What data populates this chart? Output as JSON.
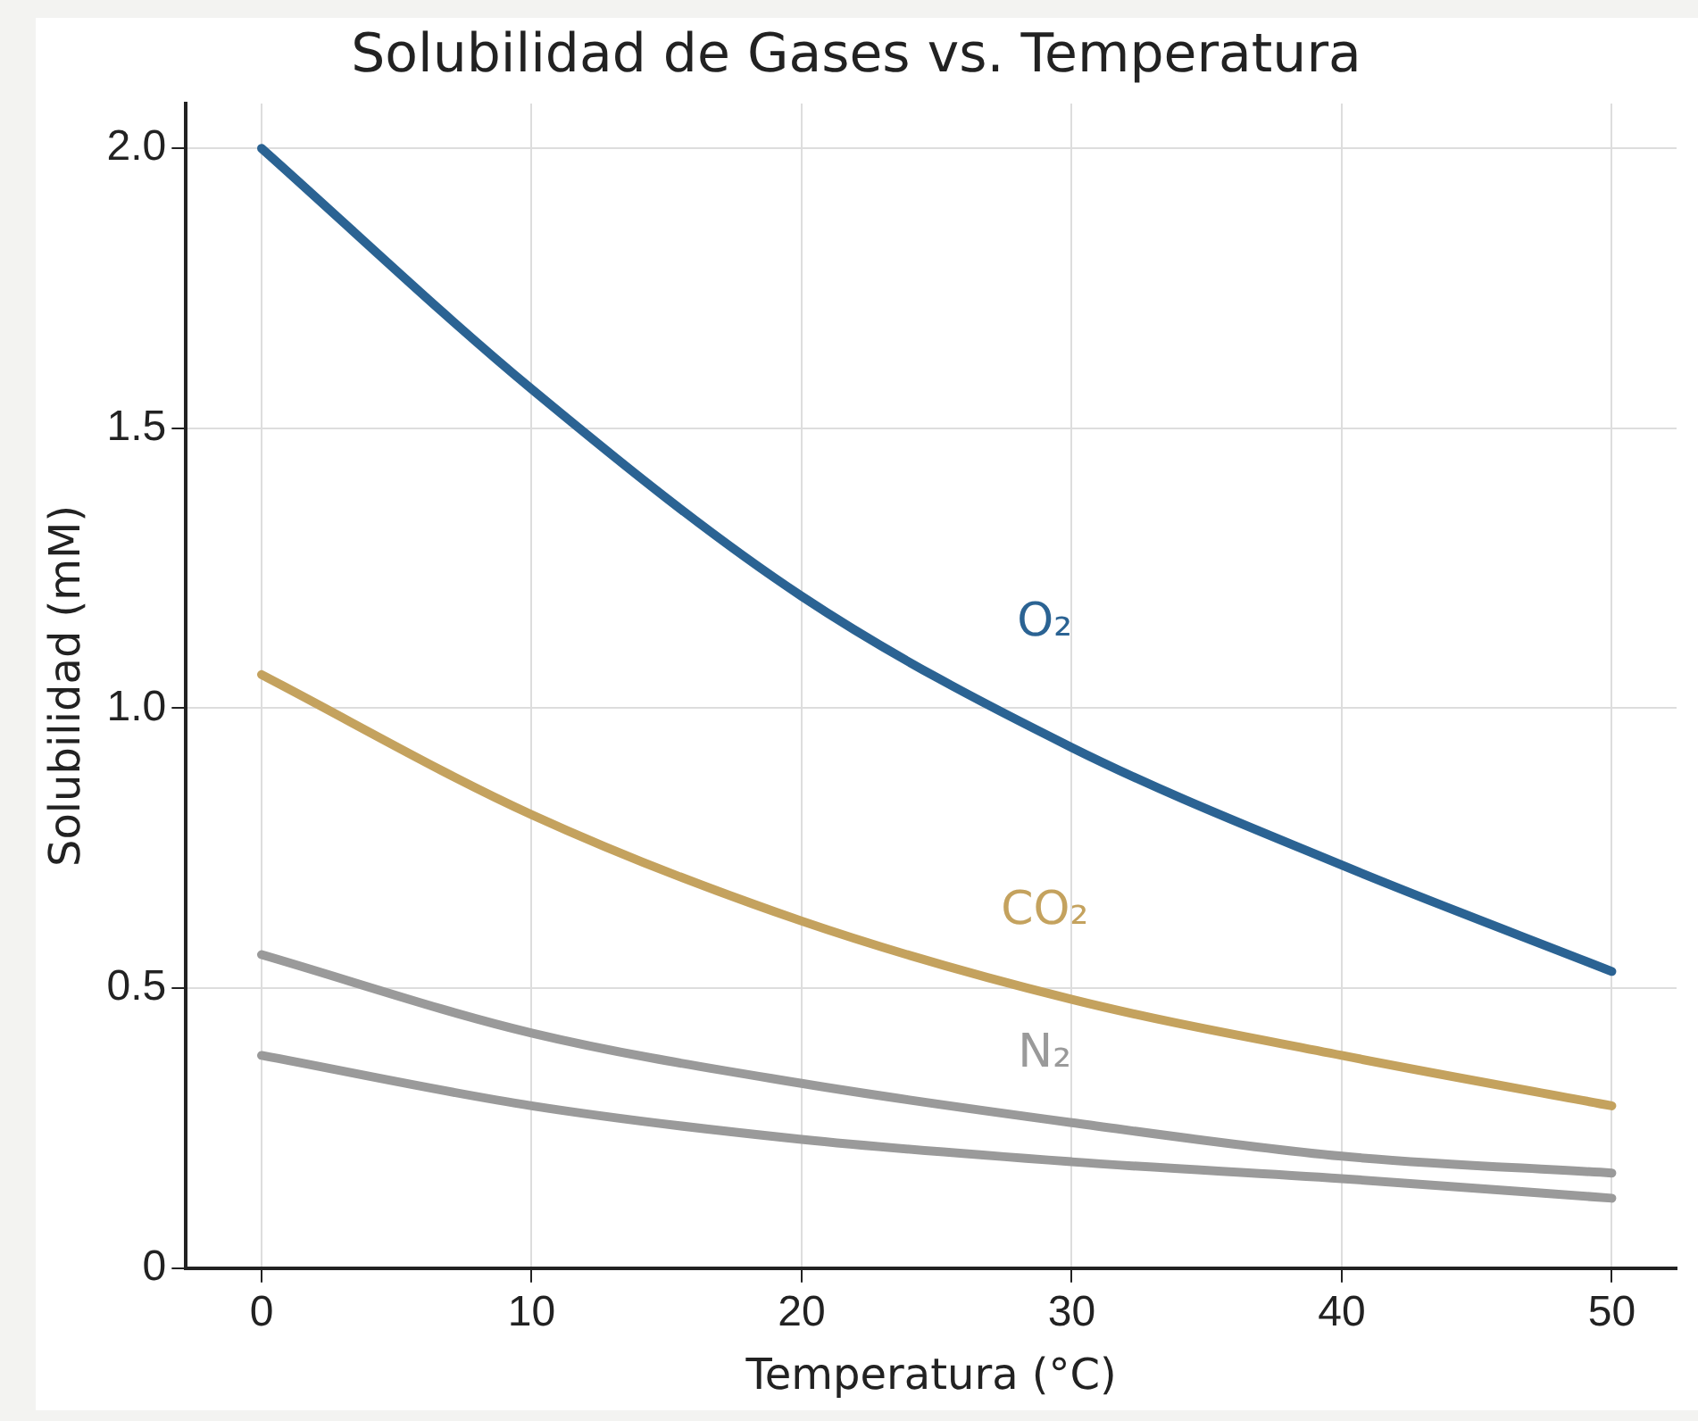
{
  "chart_data": {
    "type": "line",
    "title": "Solubilidad de Gases vs. Temperatura",
    "xlabel": "Temperatura (°C)",
    "ylabel": "Solubilidad (mM)",
    "x": [
      0,
      10,
      20,
      30,
      40,
      50
    ],
    "series": [
      {
        "name": "O₂",
        "color": "#2b6393",
        "values": [
          2.0,
          1.57,
          1.2,
          0.93,
          0.72,
          0.53
        ]
      },
      {
        "name": "CO₂",
        "color": "#c4a25e",
        "values": [
          1.06,
          0.81,
          0.62,
          0.48,
          0.38,
          0.29
        ]
      },
      {
        "name": "N₂",
        "color": "#9a9a9a",
        "values": [
          0.56,
          0.42,
          0.33,
          0.26,
          0.2,
          0.17
        ]
      },
      {
        "color": "#9a9a9a",
        "values": [
          0.38,
          0.29,
          0.23,
          0.19,
          0.16,
          0.125
        ]
      }
    ],
    "xlim": [
      -2.8,
      52.4
    ],
    "xticks": [
      0,
      10,
      20,
      30,
      40,
      50
    ],
    "ylim": [
      0,
      2.08
    ],
    "yticks": [
      0,
      {
        "value": 0.5,
        "label": "0.5"
      },
      {
        "value": 1,
        "label": "1.0"
      },
      {
        "value": 1.5,
        "label": "1.5"
      },
      {
        "value": 2,
        "label": "2.0"
      }
    ],
    "grid": true,
    "legend": false,
    "marker": "none",
    "line_style": "solid"
  }
}
